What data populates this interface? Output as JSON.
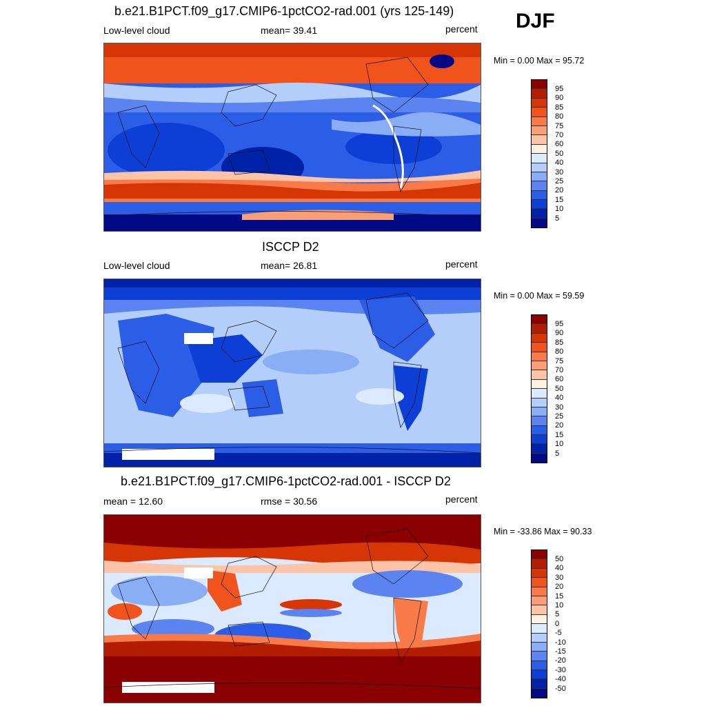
{
  "season": "DJF",
  "panels": [
    {
      "id": "model",
      "title": "b.e21.B1PCT.f09_g17.CMIP6-1pctCO2-rad.001 (yrs 125-149)",
      "left_label": "Low-level cloud",
      "center_label": "mean=  39.41",
      "right_label": "percent",
      "minmax": "Min =   0.00 Max =  95.72",
      "scale": "sequential",
      "levels": [
        "95",
        "90",
        "85",
        "80",
        "75",
        "70",
        "60",
        "50",
        "40",
        "30",
        "25",
        "20",
        "15",
        "10",
        "5"
      ],
      "colors": [
        "#8b0000",
        "#b31d02",
        "#d63506",
        "#f0541c",
        "#f77a48",
        "#fb9d75",
        "#fcc3a7",
        "#fff1e0",
        "#dceaff",
        "#b3cefb",
        "#8aaef5",
        "#5b84f0",
        "#2c5de6",
        "#0d3fd6",
        "#0022a8",
        "#000a85"
      ]
    },
    {
      "id": "obs",
      "title": "ISCCP D2",
      "left_label": "Low-level cloud",
      "center_label": "mean=  26.81",
      "right_label": "percent",
      "minmax": "Min =   0.00 Max =  59.59",
      "scale": "sequential",
      "levels": [
        "95",
        "90",
        "85",
        "80",
        "75",
        "70",
        "60",
        "50",
        "40",
        "30",
        "25",
        "20",
        "15",
        "10",
        "5"
      ],
      "colors": [
        "#8b0000",
        "#b31d02",
        "#d63506",
        "#f0541c",
        "#f77a48",
        "#fb9d75",
        "#fcc3a7",
        "#fff1e0",
        "#dceaff",
        "#b3cefb",
        "#8aaef5",
        "#5b84f0",
        "#2c5de6",
        "#0d3fd6",
        "#0022a8",
        "#000a85"
      ]
    },
    {
      "id": "diff",
      "title": "b.e21.B1PCT.f09_g17.CMIP6-1pctCO2-rad.001 - ISCCP D2",
      "left_label": "mean =  12.60",
      "center_label": "rmse =  30.56",
      "right_label": "percent",
      "minmax": "Min = -33.86 Max =  90.33",
      "scale": "diverging",
      "levels": [
        "50",
        "40",
        "30",
        "20",
        "15",
        "10",
        "5",
        "0",
        "-5",
        "-10",
        "-15",
        "-20",
        "-30",
        "-40",
        "-50"
      ],
      "colors": [
        "#8b0000",
        "#b31d02",
        "#d63506",
        "#f0541c",
        "#f77a48",
        "#fb9d75",
        "#fcc3a7",
        "#fff1e0",
        "#dceaff",
        "#b3cefb",
        "#8aaef5",
        "#5b84f0",
        "#2c5de6",
        "#0d3fd6",
        "#0022a8",
        "#000a85"
      ]
    }
  ]
}
